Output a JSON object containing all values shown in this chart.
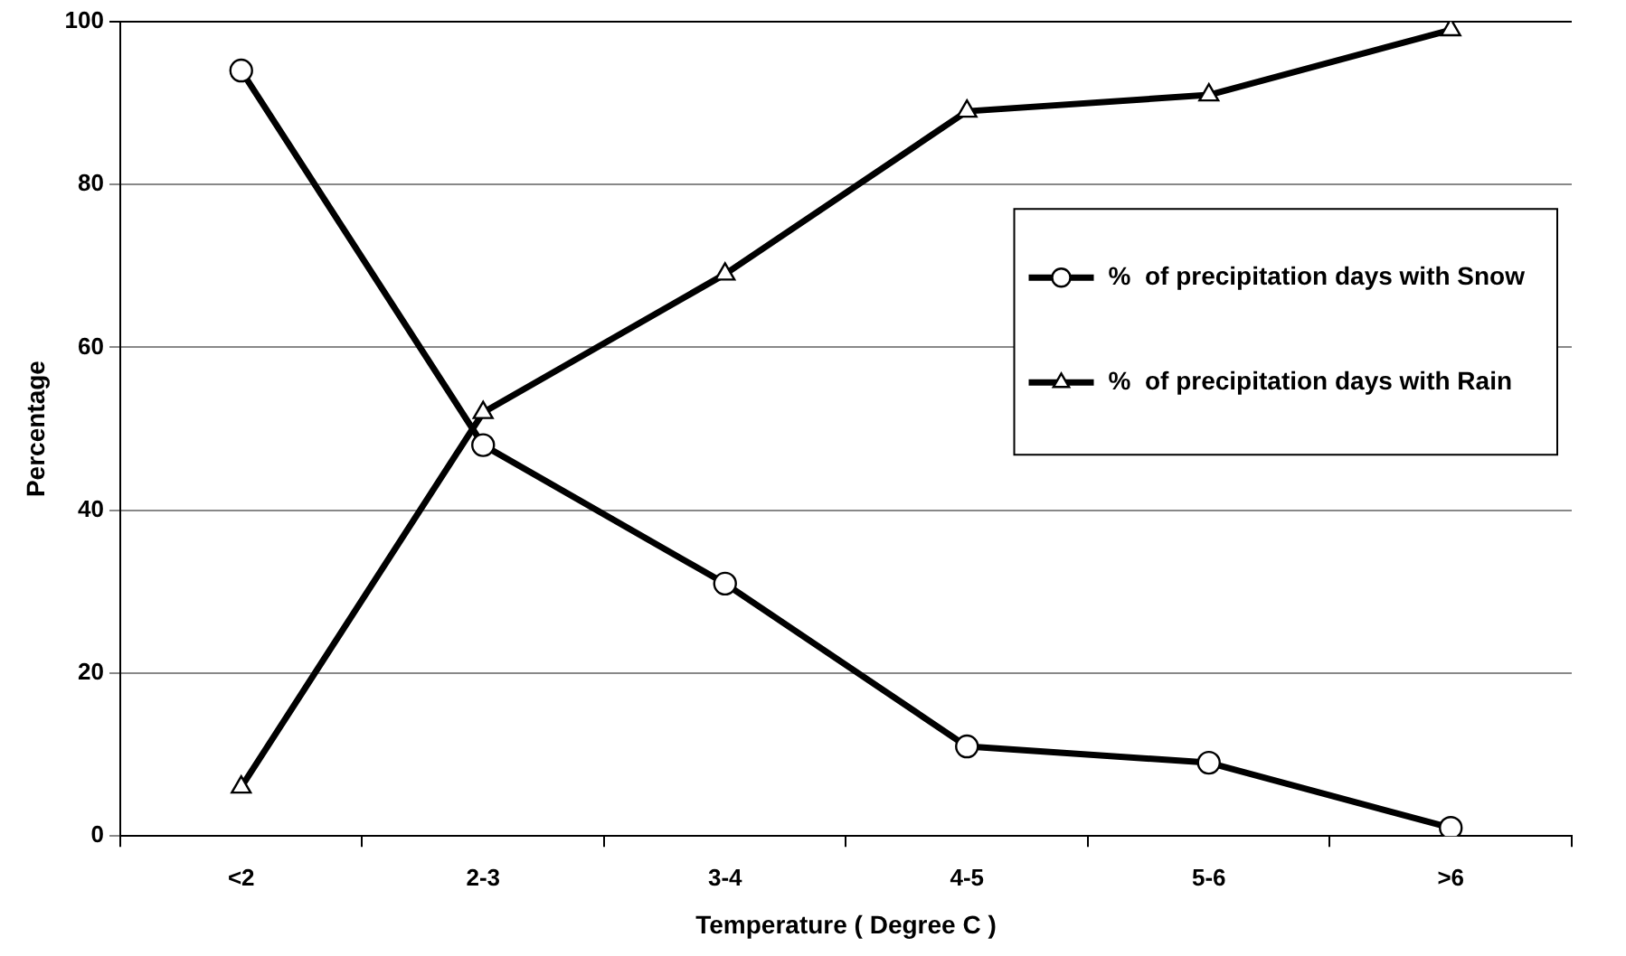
{
  "chart_data": {
    "type": "line",
    "xlabel": "Temperature ( Degree C )",
    "ylabel": "Percentage",
    "categories": [
      "<2",
      "2-3",
      "3-4",
      "4-5",
      "5-6",
      ">6"
    ],
    "series": [
      {
        "name": "%  of precipitation days with Snow",
        "color": "#000000",
        "marker": "circle",
        "values": [
          94,
          48,
          31,
          11,
          9,
          1
        ]
      },
      {
        "name": "%  of precipitation days with Rain",
        "color": "#000000",
        "marker": "triangle",
        "values": [
          6,
          52,
          69,
          89,
          91,
          99
        ]
      }
    ],
    "ylim": [
      0,
      100
    ],
    "yticks": [
      0,
      20,
      40,
      60,
      80,
      100
    ],
    "grid": "y",
    "legend": "right",
    "line_style": "solid"
  }
}
